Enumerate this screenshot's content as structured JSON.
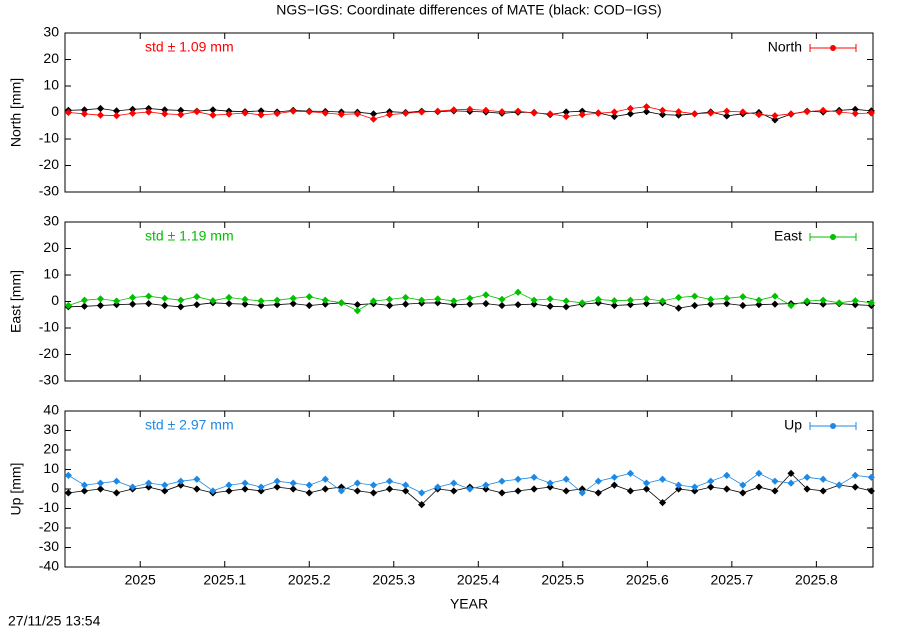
{
  "title": "NGS−IGS: Coordinate differences of MATE (black: COD−IGS)",
  "timestamp": "27/11/25 13:54",
  "chart_data": [
    {
      "type": "scatter",
      "ylabel": "North [mm]",
      "annotation": "std ± 1.09 mm",
      "legend": "upper right",
      "xlim": [
        2024.911,
        2025.867
      ],
      "xticks": [
        2025,
        2025.1,
        2025.2,
        2025.3,
        2025.4,
        2025.5,
        2025.6,
        2025.7,
        2025.8
      ],
      "ylim": [
        -30,
        30
      ],
      "yticks": [
        -30,
        -20,
        -10,
        0,
        10,
        20,
        30
      ],
      "x": [
        2024.915,
        2024.934,
        2024.953,
        2024.972,
        2024.991,
        2025.01,
        2025.029,
        2025.048,
        2025.067,
        2025.086,
        2025.105,
        2025.124,
        2025.143,
        2025.162,
        2025.181,
        2025.2,
        2025.219,
        2025.238,
        2025.257,
        2025.276,
        2025.295,
        2025.314,
        2025.333,
        2025.352,
        2025.371,
        2025.39,
        2025.409,
        2025.428,
        2025.447,
        2025.466,
        2025.485,
        2025.504,
        2025.523,
        2025.542,
        2025.561,
        2025.58,
        2025.599,
        2025.618,
        2025.637,
        2025.656,
        2025.675,
        2025.694,
        2025.713,
        2025.732,
        2025.751,
        2025.77,
        2025.789,
        2025.808,
        2025.827,
        2025.846,
        2025.865
      ],
      "series": [
        {
          "color": "#000000",
          "values": [
            0.8,
            1,
            1.5,
            0.6,
            1.2,
            1.5,
            1,
            0.8,
            0.5,
            1,
            0.5,
            0.3,
            0.6,
            0.2,
            0.8,
            0.5,
            0.4,
            0.2,
            0.1,
            -0.5,
            0.3,
            0,
            0.5,
            0.3,
            0.6,
            0.4,
            0.2,
            -0.3,
            0.1,
            0,
            -0.8,
            0.2,
            0.5,
            -0.2,
            -1.5,
            -0.5,
            0.3,
            -0.8,
            -1,
            -0.5,
            0.2,
            -1.3,
            -0.5,
            0,
            -2.8,
            -0.6,
            0.5,
            0.2,
            0.8,
            1.2,
            0.6
          ]
        },
        {
          "name": "North",
          "color": "#ff0000",
          "values": [
            0,
            -0.5,
            -1,
            -1.2,
            -0.3,
            0.2,
            -0.5,
            -0.8,
            0.3,
            -1,
            -0.6,
            -0.2,
            -0.9,
            -0.4,
            0.5,
            0.3,
            -0.2,
            -0.7,
            -0.5,
            -2.5,
            -0.8,
            -0.3,
            0.2,
            0.5,
            1,
            1.2,
            0.8,
            0.3,
            0.5,
            -0.2,
            -0.5,
            -1.5,
            -0.8,
            -0.3,
            0.2,
            1.5,
            2.2,
            0.8,
            0.3,
            -0.5,
            -0.2,
            0.5,
            0.2,
            -0.8,
            -1.2,
            -0.5,
            0.3,
            0.8,
            0.2,
            -0.4,
            -0.2
          ]
        }
      ]
    },
    {
      "type": "scatter",
      "ylabel": "East [mm]",
      "annotation": "std ± 1.19 mm",
      "legend": "upper right",
      "xlim": [
        2024.911,
        2025.867
      ],
      "xticks": [
        2025,
        2025.1,
        2025.2,
        2025.3,
        2025.4,
        2025.5,
        2025.6,
        2025.7,
        2025.8
      ],
      "ylim": [
        -30,
        30
      ],
      "yticks": [
        -30,
        -20,
        -10,
        0,
        10,
        20,
        30
      ],
      "x": [
        2024.915,
        2024.934,
        2024.953,
        2024.972,
        2024.991,
        2025.01,
        2025.029,
        2025.048,
        2025.067,
        2025.086,
        2025.105,
        2025.124,
        2025.143,
        2025.162,
        2025.181,
        2025.2,
        2025.219,
        2025.238,
        2025.257,
        2025.276,
        2025.295,
        2025.314,
        2025.333,
        2025.352,
        2025.371,
        2025.39,
        2025.409,
        2025.428,
        2025.447,
        2025.466,
        2025.485,
        2025.504,
        2025.523,
        2025.542,
        2025.561,
        2025.58,
        2025.599,
        2025.618,
        2025.637,
        2025.656,
        2025.675,
        2025.694,
        2025.713,
        2025.732,
        2025.751,
        2025.77,
        2025.789,
        2025.808,
        2025.827,
        2025.846,
        2025.865
      ],
      "series": [
        {
          "color": "#000000",
          "values": [
            -2,
            -1.8,
            -1.5,
            -1.2,
            -1,
            -0.8,
            -1.5,
            -2,
            -1.2,
            -0.5,
            -0.8,
            -1,
            -1.5,
            -1.2,
            -0.8,
            -1.5,
            -1,
            -0.5,
            -1.2,
            -0.8,
            -1.5,
            -1,
            -0.6,
            -0.5,
            -1.2,
            -1,
            -0.8,
            -1.5,
            -1.2,
            -1,
            -1.8,
            -2,
            -1,
            -0.5,
            -1.5,
            -1.2,
            -0.8,
            -0.5,
            -2.5,
            -1.5,
            -1,
            -0.8,
            -1.5,
            -1.2,
            -1,
            -0.8,
            -0.5,
            -1,
            -0.8,
            -1.2,
            -1.5
          ]
        },
        {
          "name": "East",
          "color": "#00c000",
          "values": [
            -1.5,
            0.5,
            1,
            0.2,
            1.5,
            2,
            1.2,
            0.5,
            1.8,
            0.3,
            1.5,
            0.8,
            0.2,
            0.5,
            1.2,
            1.8,
            0.5,
            -0.5,
            -3.5,
            0.2,
            0.8,
            1.5,
            0.5,
            1,
            0.2,
            1.2,
            2.5,
            0.8,
            3.5,
            0.5,
            1,
            0.2,
            -0.5,
            0.8,
            0.3,
            0.5,
            1,
            0.2,
            1.5,
            2,
            0.8,
            1.2,
            1.8,
            0.5,
            2,
            -1.5,
            0.2,
            0.5,
            -0.5,
            0.3,
            -0.5
          ]
        }
      ]
    },
    {
      "type": "scatter",
      "ylabel": "Up [mm]",
      "annotation": "std ± 2.97 mm",
      "legend": "upper right",
      "xlabel": "YEAR",
      "xlim": [
        2024.911,
        2025.867
      ],
      "xticks": [
        2025,
        2025.1,
        2025.2,
        2025.3,
        2025.4,
        2025.5,
        2025.6,
        2025.7,
        2025.8
      ],
      "ylim": [
        -40,
        40
      ],
      "yticks": [
        -40,
        -30,
        -20,
        -10,
        0,
        10,
        20,
        30,
        40
      ],
      "x": [
        2024.915,
        2024.934,
        2024.953,
        2024.972,
        2024.991,
        2025.01,
        2025.029,
        2025.048,
        2025.067,
        2025.086,
        2025.105,
        2025.124,
        2025.143,
        2025.162,
        2025.181,
        2025.2,
        2025.219,
        2025.238,
        2025.257,
        2025.276,
        2025.295,
        2025.314,
        2025.333,
        2025.352,
        2025.371,
        2025.39,
        2025.409,
        2025.428,
        2025.447,
        2025.466,
        2025.485,
        2025.504,
        2025.523,
        2025.542,
        2025.561,
        2025.58,
        2025.599,
        2025.618,
        2025.637,
        2025.656,
        2025.675,
        2025.694,
        2025.713,
        2025.732,
        2025.751,
        2025.77,
        2025.789,
        2025.808,
        2025.827,
        2025.846,
        2025.865
      ],
      "series": [
        {
          "color": "#000000",
          "values": [
            -2,
            -1,
            0,
            -2,
            0,
            1,
            -1,
            2,
            0,
            -2,
            -1,
            0,
            -1,
            1,
            0,
            -2,
            0,
            1,
            -1,
            -2,
            0,
            -1,
            -8,
            0,
            -1,
            1,
            0,
            -2,
            -1,
            0,
            1,
            -1,
            0,
            -2,
            2,
            -1,
            0,
            -7,
            0,
            -1,
            1,
            0,
            -2,
            1,
            -1,
            8,
            0,
            -1,
            2,
            1,
            -1
          ]
        },
        {
          "name": "Up",
          "color": "#1e88e5",
          "values": [
            7,
            2,
            3,
            4,
            1,
            3,
            2,
            4,
            5,
            -1,
            2,
            3,
            1,
            4,
            3,
            2,
            5,
            -1,
            3,
            2,
            4,
            2,
            -2,
            1,
            3,
            0,
            2,
            4,
            5,
            6,
            3,
            5,
            -2,
            4,
            6,
            8,
            3,
            5,
            2,
            1,
            4,
            7,
            2,
            8,
            4,
            3,
            6,
            5,
            2,
            7,
            6
          ]
        }
      ]
    }
  ]
}
